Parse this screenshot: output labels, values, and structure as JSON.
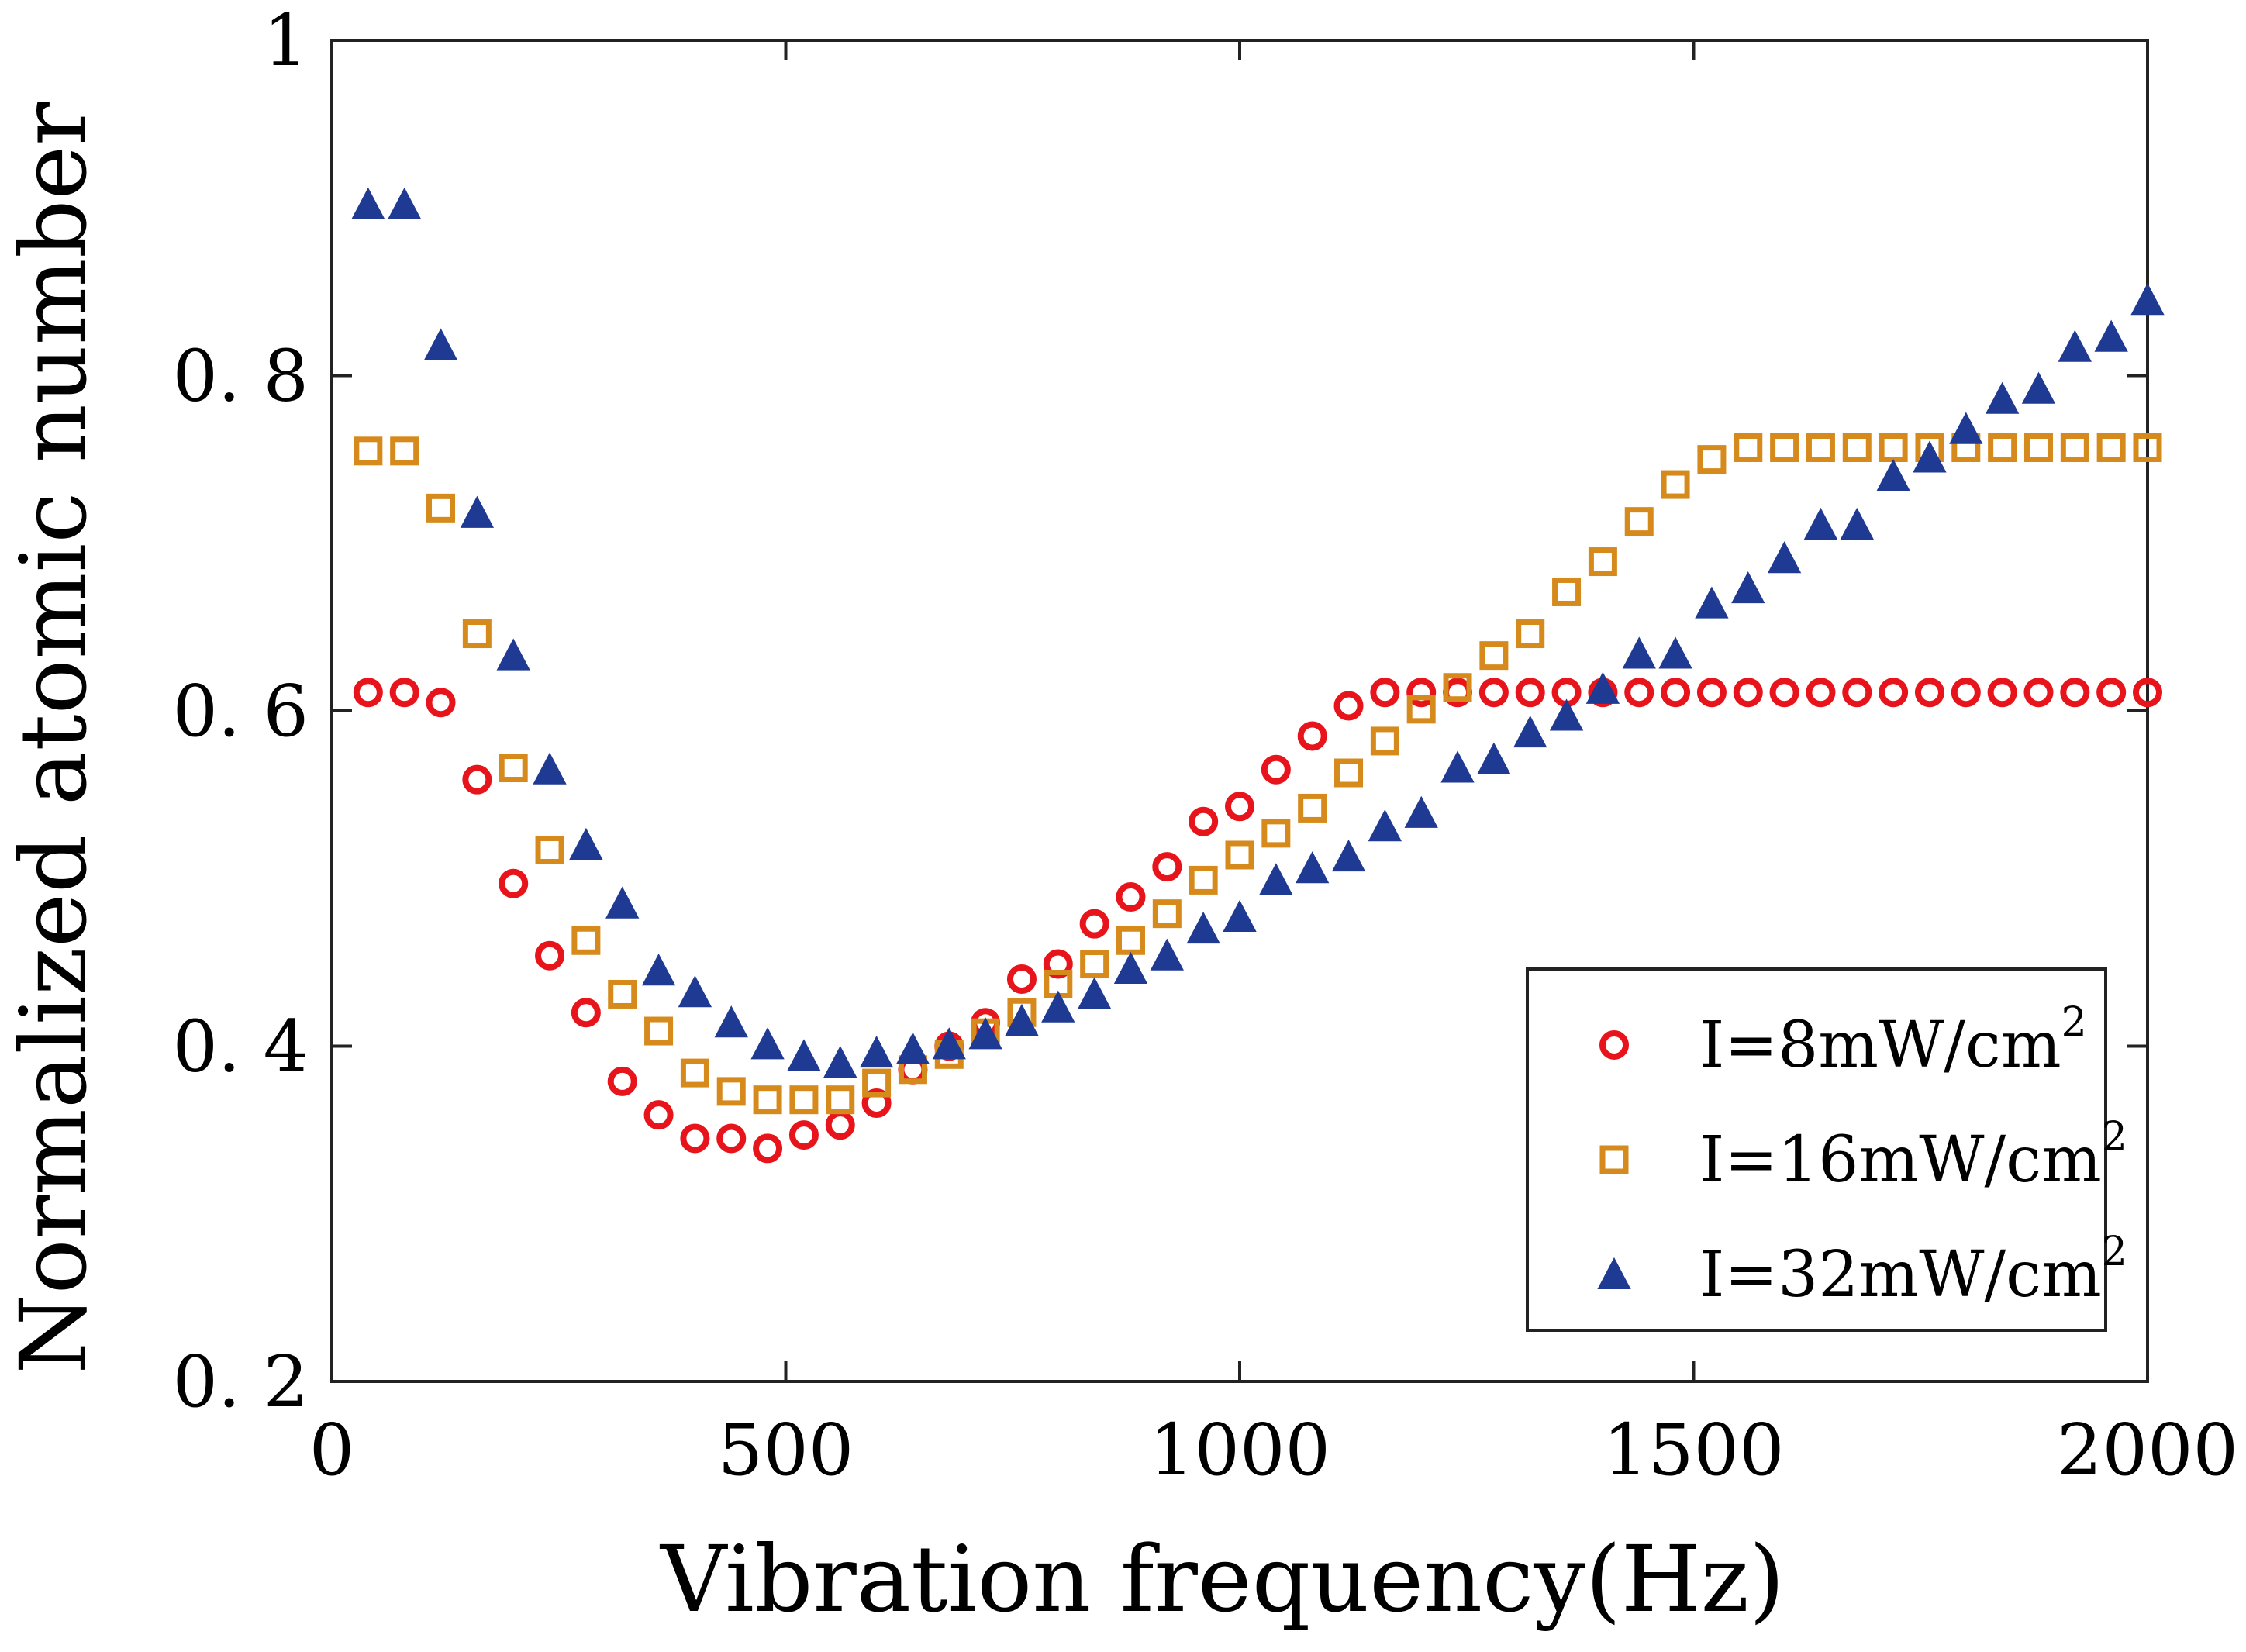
{
  "chart_data": {
    "type": "scatter",
    "title": "",
    "xlabel": "Vibration frequency(Hz)",
    "ylabel": "Normalized atomic number",
    "xlim": [
      0,
      2000
    ],
    "ylim": [
      0.2,
      1.0
    ],
    "xticks": [
      0,
      500,
      1000,
      1500,
      2000
    ],
    "xtick_labels": [
      "0",
      "500",
      "1000",
      "1500",
      "2000"
    ],
    "yticks": [
      0.2,
      0.4,
      0.6,
      0.8,
      1.0
    ],
    "ytick_labels": [
      "0. 2",
      "0. 4",
      "0. 6",
      "0. 8",
      "1"
    ],
    "grid": false,
    "legend_position": "bottom-right",
    "x": [
      40,
      80,
      120,
      160,
      200,
      240,
      280,
      320,
      360,
      400,
      440,
      480,
      520,
      560,
      600,
      640,
      680,
      720,
      760,
      800,
      840,
      880,
      920,
      960,
      1000,
      1040,
      1080,
      1120,
      1160,
      1200,
      1240,
      1280,
      1320,
      1360,
      1400,
      1440,
      1480,
      1520,
      1560,
      1600,
      1640,
      1680,
      1720,
      1760,
      1800,
      1840,
      1880,
      1920,
      1960,
      2000
    ],
    "series": [
      {
        "name": "I=8mW/cm2",
        "label_main": "I=8mW/cm",
        "label_sup": "2",
        "marker": "circle",
        "color": "#e8141b",
        "values": [
          0.611,
          0.611,
          0.605,
          0.559,
          0.497,
          0.454,
          0.42,
          0.379,
          0.359,
          0.345,
          0.345,
          0.339,
          0.347,
          0.353,
          0.366,
          0.386,
          0.4,
          0.414,
          0.44,
          0.449,
          0.473,
          0.489,
          0.507,
          0.534,
          0.543,
          0.565,
          0.585,
          0.603,
          0.611,
          0.611,
          0.611,
          0.611,
          0.611,
          0.611,
          0.611,
          0.611,
          0.611,
          0.611,
          0.611,
          0.611,
          0.611,
          0.611,
          0.611,
          0.611,
          0.611,
          0.611,
          0.611,
          0.611,
          0.611,
          0.611
        ]
      },
      {
        "name": "I=16mW/cm2",
        "label_main": "I=16mW/cm",
        "label_sup": "2",
        "marker": "square",
        "color": "#d68a1c",
        "values": [
          0.755,
          0.755,
          0.721,
          0.646,
          0.566,
          0.517,
          0.463,
          0.431,
          0.409,
          0.384,
          0.373,
          0.368,
          0.368,
          0.368,
          0.378,
          0.386,
          0.395,
          0.408,
          0.42,
          0.437,
          0.449,
          0.463,
          0.479,
          0.499,
          0.514,
          0.527,
          0.542,
          0.563,
          0.582,
          0.601,
          0.614,
          0.633,
          0.646,
          0.671,
          0.689,
          0.713,
          0.735,
          0.75,
          0.757,
          0.757,
          0.757,
          0.757,
          0.757,
          0.757,
          0.757,
          0.757,
          0.757,
          0.757,
          0.757,
          0.757
        ]
      },
      {
        "name": "I=32mW/cm2",
        "label_main": "I=32mW/cm",
        "label_sup": "2",
        "marker": "triangle",
        "color": "#1f3a93",
        "values": [
          0.902,
          0.902,
          0.818,
          0.718,
          0.633,
          0.565,
          0.52,
          0.485,
          0.445,
          0.432,
          0.414,
          0.401,
          0.394,
          0.39,
          0.396,
          0.398,
          0.401,
          0.407,
          0.415,
          0.423,
          0.431,
          0.446,
          0.454,
          0.47,
          0.477,
          0.499,
          0.506,
          0.513,
          0.531,
          0.539,
          0.566,
          0.571,
          0.587,
          0.597,
          0.613,
          0.634,
          0.634,
          0.664,
          0.673,
          0.691,
          0.711,
          0.711,
          0.74,
          0.751,
          0.768,
          0.786,
          0.792,
          0.817,
          0.823,
          0.845
        ]
      }
    ]
  }
}
